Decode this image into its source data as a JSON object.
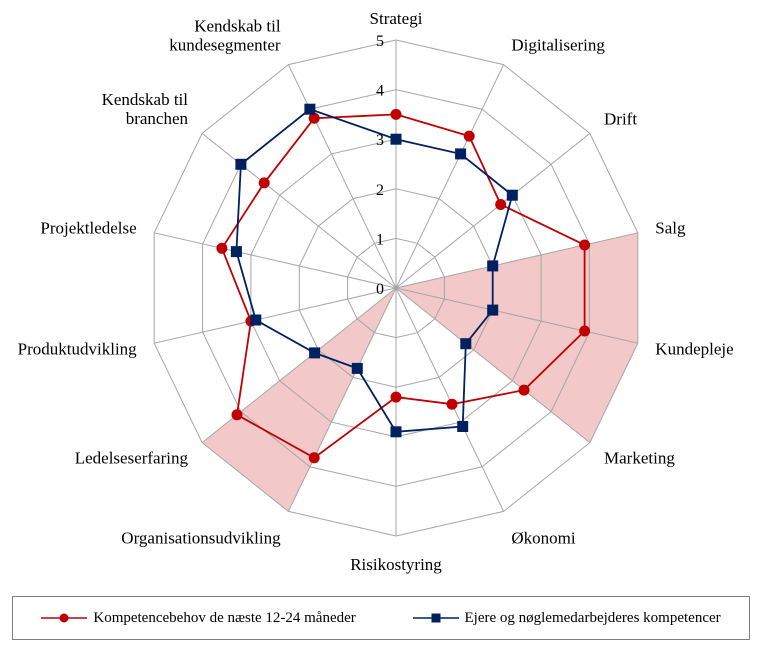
{
  "chart_data": {
    "type": "radar",
    "title": "",
    "categories": [
      "Strategi",
      "Digitalisering",
      "Drift",
      "Salg",
      "Kundepleje",
      "Marketing",
      "Økonomi",
      "Risikostyring",
      "Organisationsudvikling",
      "Ledelseserfaring",
      "Produktudvikling",
      "Projektledelse",
      "Kendskab til branchen",
      "Kendskab til kundesegmenter"
    ],
    "radial_ticks": [
      "0",
      "1",
      "2",
      "3",
      "4",
      "5"
    ],
    "rlim": [
      0,
      5
    ],
    "series": [
      {
        "name": "Kompetencebehov de næste 12-24 måneder",
        "color": "#c00000",
        "marker": "circle",
        "values": [
          3.5,
          3.4,
          2.7,
          3.9,
          3.9,
          3.3,
          2.6,
          2.2,
          3.8,
          4.1,
          3.0,
          3.6,
          3.4,
          3.8
        ]
      },
      {
        "name": "Ejere og nøglemedarbejderes kompetencer",
        "color": "#002060",
        "marker": "square",
        "values": [
          3.0,
          3.0,
          3.0,
          2.0,
          2.0,
          1.8,
          3.1,
          2.9,
          1.8,
          2.1,
          2.9,
          3.3,
          4.0,
          4.0
        ]
      }
    ],
    "highlight_color": "#f2c8c8",
    "legend_position": "bottom"
  }
}
